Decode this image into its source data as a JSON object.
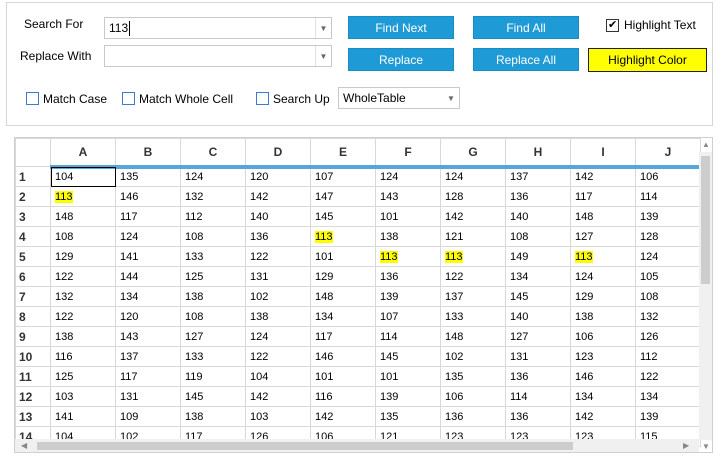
{
  "search": {
    "search_label": "Search For",
    "search_value": "113",
    "replace_label": "Replace With",
    "replace_value": "",
    "find_next": "Find Next",
    "find_all": "Find All",
    "replace": "Replace",
    "replace_all": "Replace All",
    "highlight_text": "Highlight Text",
    "highlight_text_checked": true,
    "highlight_color": "Highlight Color",
    "highlight_color_value": "#ffff00",
    "match_case": "Match Case",
    "match_whole_cell": "Match Whole Cell",
    "search_up": "Search Up",
    "scope": "WholeTable"
  },
  "grid": {
    "columns": [
      "A",
      "B",
      "C",
      "D",
      "E",
      "F",
      "G",
      "H",
      "I",
      "J"
    ],
    "rows": [
      {
        "n": "1",
        "cells": [
          "104",
          "135",
          "124",
          "120",
          "107",
          "124",
          "124",
          "137",
          "142",
          "106"
        ]
      },
      {
        "n": "2",
        "cells": [
          "113",
          "146",
          "132",
          "142",
          "147",
          "143",
          "128",
          "136",
          "117",
          "114"
        ]
      },
      {
        "n": "3",
        "cells": [
          "148",
          "117",
          "112",
          "140",
          "145",
          "101",
          "142",
          "140",
          "148",
          "139"
        ]
      },
      {
        "n": "4",
        "cells": [
          "108",
          "124",
          "108",
          "136",
          "113",
          "138",
          "121",
          "108",
          "127",
          "128"
        ]
      },
      {
        "n": "5",
        "cells": [
          "129",
          "141",
          "133",
          "122",
          "101",
          "113",
          "113",
          "149",
          "113",
          "124"
        ]
      },
      {
        "n": "6",
        "cells": [
          "122",
          "144",
          "125",
          "131",
          "129",
          "136",
          "122",
          "134",
          "124",
          "105"
        ]
      },
      {
        "n": "7",
        "cells": [
          "132",
          "134",
          "138",
          "102",
          "148",
          "139",
          "137",
          "145",
          "129",
          "108"
        ]
      },
      {
        "n": "8",
        "cells": [
          "122",
          "120",
          "108",
          "138",
          "134",
          "107",
          "133",
          "140",
          "138",
          "132"
        ]
      },
      {
        "n": "9",
        "cells": [
          "138",
          "143",
          "127",
          "124",
          "117",
          "114",
          "148",
          "127",
          "106",
          "126"
        ]
      },
      {
        "n": "10",
        "cells": [
          "116",
          "137",
          "133",
          "122",
          "146",
          "145",
          "102",
          "131",
          "123",
          "112"
        ]
      },
      {
        "n": "11",
        "cells": [
          "125",
          "117",
          "119",
          "104",
          "101",
          "101",
          "135",
          "136",
          "146",
          "122"
        ]
      },
      {
        "n": "12",
        "cells": [
          "103",
          "131",
          "145",
          "142",
          "116",
          "139",
          "106",
          "114",
          "134",
          "134"
        ]
      },
      {
        "n": "13",
        "cells": [
          "141",
          "109",
          "138",
          "103",
          "142",
          "135",
          "136",
          "136",
          "142",
          "139"
        ]
      },
      {
        "n": "14",
        "cells": [
          "104",
          "102",
          "117",
          "126",
          "106",
          "121",
          "123",
          "123",
          "123",
          "115"
        ]
      }
    ],
    "highlighted_value": "113",
    "selected_cell": "A1"
  },
  "colors": {
    "button_blue": "#1e9ad6",
    "highlight": "#ffff00",
    "header_accent": "#5aa5d8"
  }
}
